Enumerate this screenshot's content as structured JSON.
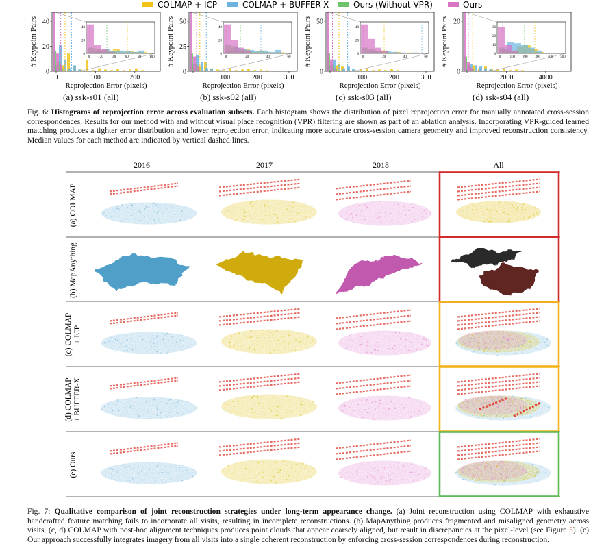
{
  "legend": {
    "items": [
      {
        "label": "COLMAP + ICP",
        "color": "#f2c418"
      },
      {
        "label": "COLMAP + BUFFER-X",
        "color": "#6cb4df"
      },
      {
        "label": "Ours (Without VPR)",
        "color": "#6cc36a"
      },
      {
        "label": "Ours",
        "color": "#d774c4"
      }
    ]
  },
  "fig6": {
    "panels": [
      {
        "caption": "(a) ssk-s01 (all)",
        "ylabel": "# Keypoint Pairs",
        "xlabel": "Reprojection Error (pixels)",
        "yticks": [
          "0",
          "20",
          "40"
        ],
        "xticks": [
          "0",
          "100",
          "200"
        ],
        "inset_yticks": [
          "0",
          "20",
          "40"
        ],
        "inset_xticks": [
          "0",
          "20",
          "40",
          "60",
          "80",
          "100"
        ]
      },
      {
        "caption": "(b) ssk-s02 (all)",
        "ylabel": "# Keypoint Pairs",
        "xlabel": "Reprojection Error (pixels)",
        "yticks": [
          "0",
          "25",
          "50"
        ],
        "xticks": [
          "0",
          "100",
          "200",
          "300"
        ],
        "inset_yticks": [
          "0",
          "20",
          "40"
        ],
        "inset_xticks": [
          "0",
          "20",
          "40",
          "60"
        ]
      },
      {
        "caption": "(c) ssk-s03 (all)",
        "ylabel": "# Keypoint Pairs",
        "xlabel": "Reprojection Error (pixels)",
        "yticks": [
          "0",
          "50"
        ],
        "xticks": [
          "0",
          "100",
          "200",
          "300"
        ],
        "inset_yticks": [
          "0",
          "20",
          "40"
        ],
        "inset_xticks": [
          "0",
          "20",
          "40",
          "60"
        ]
      },
      {
        "caption": "(d) ssk-s04 (all)",
        "ylabel": "# Keypoint Pairs",
        "xlabel": "Reprojection Error (pixels)",
        "yticks": [
          "0",
          "20"
        ],
        "xticks": [
          "0",
          "2000",
          "4000"
        ],
        "inset_yticks": [
          "0",
          "10",
          "20",
          "30"
        ],
        "inset_xticks": [
          "0",
          "100",
          "200",
          "300",
          "400",
          "500"
        ]
      }
    ],
    "caption": {
      "label": "Fig. 6:",
      "title": "Histograms of reprojection error across evaluation subsets.",
      "body": "Each histogram shows the distribution of pixel reprojection error for manually annotated cross-session correspondences. Results for our method with and without visual place recognition (VPR) filtering are shown as part of an ablation analysis. Incorporating VPR-guided learned matching produces a tighter error distribution and lower reprojection error, indicating more accurate cross-session camera geometry and improved reconstruction consistency. Median values for each method are indicated by vertical dashed lines."
    }
  },
  "fig7": {
    "columns": [
      "2016",
      "2017",
      "2018",
      "All"
    ],
    "rows": [
      {
        "label": [
          "(a) COLMAP"
        ],
        "border": "#d42a2a"
      },
      {
        "label": [
          "(b) MapAnything"
        ],
        "border": "#d42a2a"
      },
      {
        "label": [
          "(c) COLMAP",
          "+ ICP"
        ],
        "border": "#f3b31b"
      },
      {
        "label": [
          "(d) COLMAP",
          "+ BUFFER-X"
        ],
        "border": "#f3b31b"
      },
      {
        "label": [
          "(e) Ours"
        ],
        "border": "#5fba58"
      }
    ],
    "cloud_colors": {
      "2016": "#78b8dc",
      "2017": "#e0c21c",
      "2018": "#e28ad2",
      "camera": "#e0433a",
      "mesh_2016": "#4f9fc9",
      "mesh_2017": "#cfab0b",
      "mesh_2018": "#c15aae",
      "mesh_dark": "#2b2b2b",
      "mesh_red": "#5e2520"
    },
    "caption": {
      "label": "Fig. 7:",
      "title": "Qualitative comparison of joint reconstruction strategies under long-term appearance change.",
      "body_1": "(a) Joint reconstruction using COLMAP with exhaustive handcrafted feature matching fails to incorporate all visits, resulting in incomplete reconstructions. (b) MapAnything produces fragmented and misaligned geometry across visits. (c, d) COLMAP with post-hoc alignment techniques produces point clouds that appear coarsely aligned, but result in discrepancies at the pixel-level (see Figure ",
      "ref": "5",
      "body_2": "). (e) Our approach successfully integrates imagery from all visits into a single coherent reconstruction by enforcing cross-session correspondences during reconstruction."
    }
  }
}
